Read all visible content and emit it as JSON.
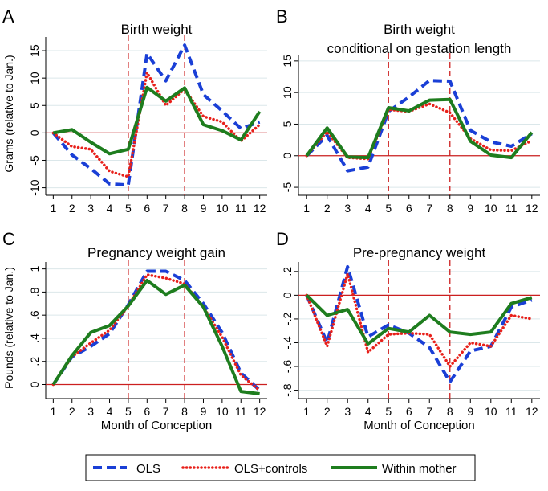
{
  "colors": {
    "ols": "#1a3fd6",
    "ols_controls": "#e8201a",
    "within": "#1e7d1e",
    "ref": "#cc1f1f",
    "grid": "#dbe7ea"
  },
  "legend": {
    "items": [
      {
        "label": "OLS",
        "style": "dash",
        "color": "#1a3fd6"
      },
      {
        "label": "OLS+controls",
        "style": "dot",
        "color": "#e8201a"
      },
      {
        "label": "Within mother",
        "style": "solid",
        "color": "#1e7d1e"
      }
    ]
  },
  "chart_data": [
    {
      "type": "line",
      "panel_letter": "A",
      "title_lines": [
        "Birth weight"
      ],
      "xlabel": "",
      "ylabel": "Grams (relative to Jan.)",
      "x": [
        1,
        2,
        3,
        4,
        5,
        6,
        7,
        8,
        9,
        10,
        11,
        12
      ],
      "ylim": [
        -10.5,
        17.5
      ],
      "yticks": [
        -10,
        -5,
        0,
        5,
        10,
        15
      ],
      "ytick_labels": [
        "-10",
        "-5",
        "0",
        "5",
        "10",
        "15"
      ],
      "vlines": [
        5,
        8
      ],
      "hline": 0,
      "series": [
        {
          "name": "OLS",
          "values": [
            0,
            -4,
            -6.5,
            -9.3,
            -9.5,
            14.5,
            9.5,
            16,
            7,
            4,
            0.8,
            2
          ]
        },
        {
          "name": "OLS+controls",
          "values": [
            0,
            -2.5,
            -3,
            -7,
            -8,
            11,
            5,
            8,
            3,
            2,
            -1.5,
            1.5
          ]
        },
        {
          "name": "Within mother",
          "values": [
            0,
            0.6,
            -1.7,
            -3.8,
            -3,
            8.3,
            5.8,
            8.2,
            1.5,
            0.4,
            -1.3,
            3.9
          ]
        }
      ]
    },
    {
      "type": "line",
      "panel_letter": "B",
      "title_lines": [
        "Birth weight",
        "conditional on gestation length"
      ],
      "xlabel": "",
      "ylabel": "",
      "x": [
        1,
        2,
        3,
        4,
        5,
        6,
        7,
        8,
        9,
        10,
        11,
        12
      ],
      "ylim": [
        -5.5,
        16
      ],
      "yticks": [
        -5,
        0,
        5,
        10,
        15
      ],
      "ytick_labels": [
        "-5",
        "0",
        "5",
        "10",
        "15"
      ],
      "vlines": [
        5,
        8
      ],
      "hline": 0,
      "series": [
        {
          "name": "OLS",
          "values": [
            0,
            3.2,
            -2.4,
            -1.8,
            7,
            9.3,
            11.9,
            11.8,
            4,
            2.2,
            1.5,
            3.5
          ]
        },
        {
          "name": "OLS+controls",
          "values": [
            0,
            3.8,
            -0.3,
            -0.5,
            7.3,
            7,
            8.2,
            6.8,
            2.7,
            0.9,
            0.8,
            2.4
          ]
        },
        {
          "name": "Within mother",
          "values": [
            0,
            4.4,
            -0.2,
            -0.3,
            7.6,
            7.1,
            8.8,
            8.9,
            2.3,
            0.1,
            -0.3,
            3.7
          ]
        }
      ]
    },
    {
      "type": "line",
      "panel_letter": "C",
      "title_lines": [
        "Pregnancy weight gain"
      ],
      "xlabel": "Month of Conception",
      "ylabel": "Pounds (relative to Jan.)",
      "x": [
        1,
        2,
        3,
        4,
        5,
        6,
        7,
        8,
        9,
        10,
        11,
        12
      ],
      "ylim": [
        -0.08,
        1.06
      ],
      "yticks": [
        0,
        0.2,
        0.4,
        0.6,
        0.8,
        1
      ],
      "ytick_labels": [
        "0",
        ".2",
        ".4",
        ".6",
        ".8",
        "1"
      ],
      "vlines": [
        5,
        8
      ],
      "hline": 0,
      "series": [
        {
          "name": "OLS",
          "values": [
            0,
            0.24,
            0.33,
            0.44,
            0.69,
            0.98,
            0.98,
            0.9,
            0.7,
            0.45,
            0.1,
            -0.05
          ]
        },
        {
          "name": "OLS+controls",
          "values": [
            0,
            0.24,
            0.36,
            0.47,
            0.68,
            0.95,
            0.92,
            0.87,
            0.67,
            0.41,
            0.08,
            -0.05
          ]
        },
        {
          "name": "Within mother",
          "values": [
            0,
            0.25,
            0.45,
            0.51,
            0.68,
            0.9,
            0.78,
            0.86,
            0.67,
            0.33,
            -0.06,
            -0.08
          ]
        }
      ]
    },
    {
      "type": "line",
      "panel_letter": "D",
      "title_lines": [
        "Pre-pregnancy weight"
      ],
      "xlabel": "Month of Conception",
      "ylabel": "",
      "x": [
        1,
        2,
        3,
        4,
        5,
        6,
        7,
        8,
        9,
        10,
        11,
        12
      ],
      "ylim": [
        -0.83,
        0.28
      ],
      "yticks": [
        -0.8,
        -0.6,
        -0.4,
        -0.2,
        0,
        0.2
      ],
      "ytick_labels": [
        "-.8",
        "-.6",
        "-.4",
        "-.2",
        "0",
        ".2"
      ],
      "vlines": [
        5,
        8
      ],
      "hline": 0,
      "series": [
        {
          "name": "OLS",
          "values": [
            0,
            -0.4,
            0.24,
            -0.35,
            -0.25,
            -0.32,
            -0.44,
            -0.73,
            -0.47,
            -0.43,
            -0.1,
            -0.04
          ]
        },
        {
          "name": "OLS+controls",
          "values": [
            0,
            -0.43,
            0.18,
            -0.48,
            -0.33,
            -0.32,
            -0.33,
            -0.6,
            -0.4,
            -0.43,
            -0.17,
            -0.2
          ]
        },
        {
          "name": "Within mother",
          "values": [
            0,
            -0.17,
            -0.12,
            -0.41,
            -0.28,
            -0.31,
            -0.17,
            -0.31,
            -0.33,
            -0.31,
            -0.07,
            -0.02
          ]
        }
      ]
    }
  ]
}
